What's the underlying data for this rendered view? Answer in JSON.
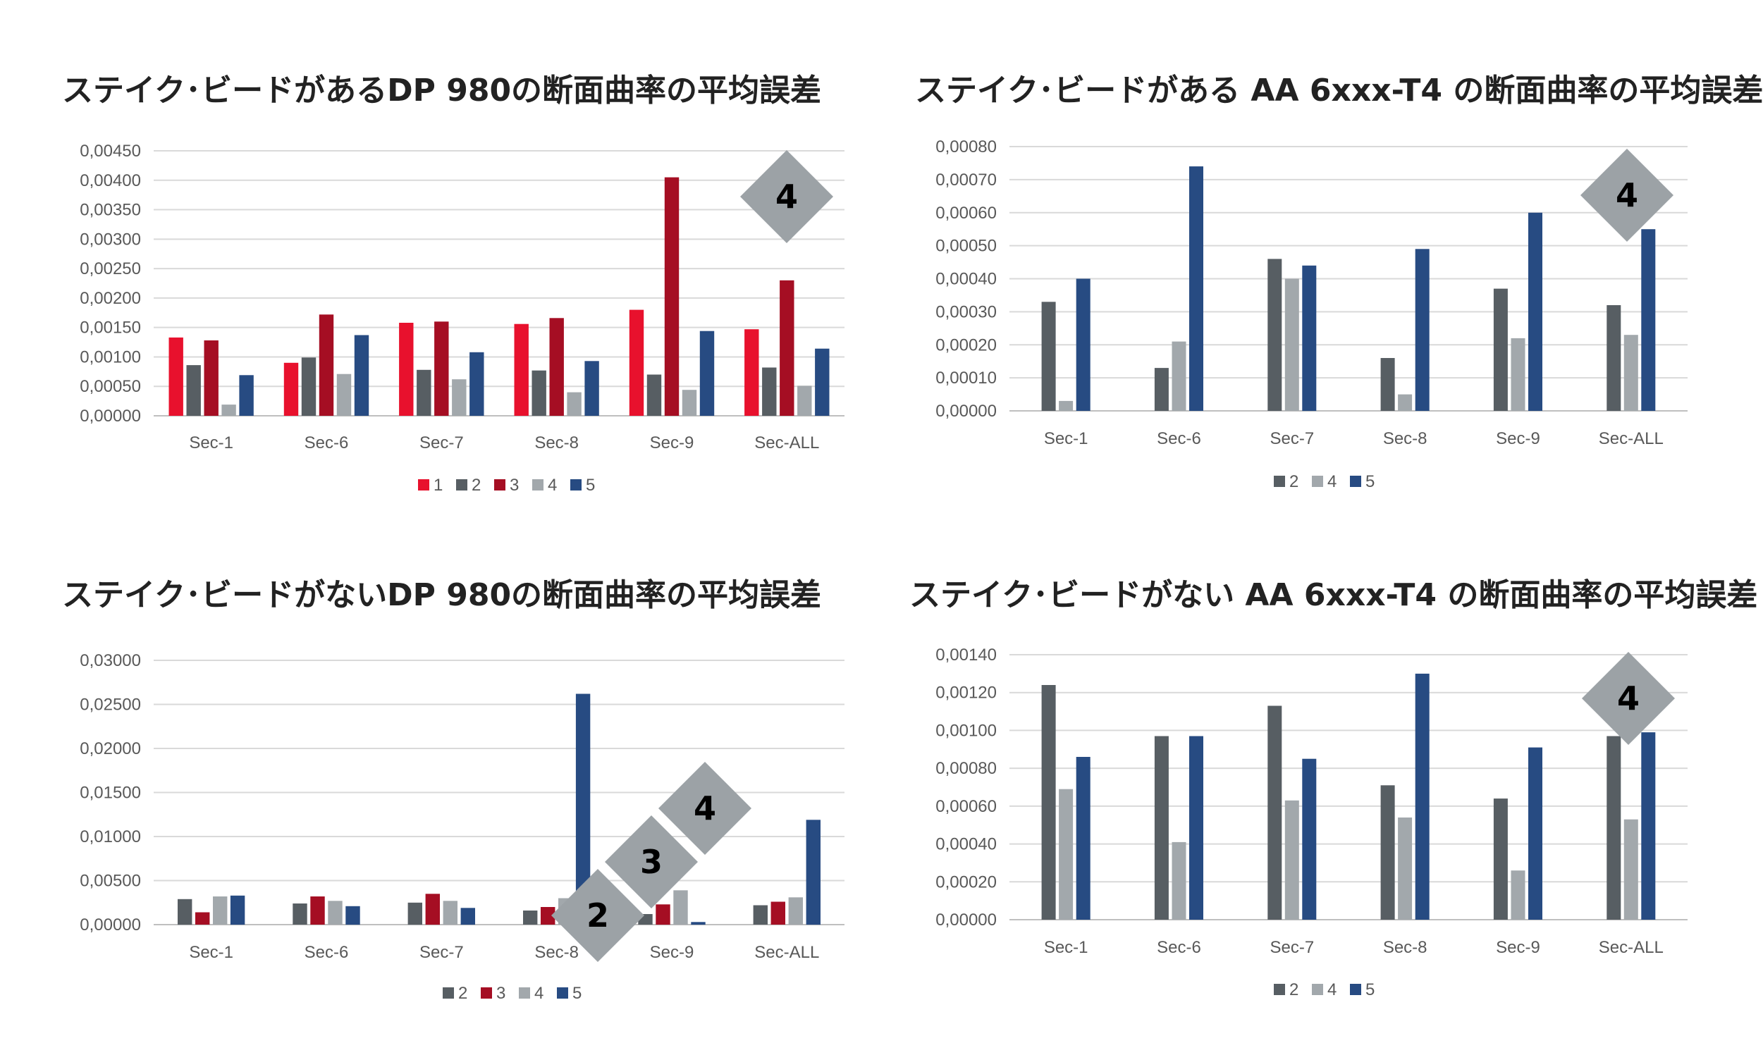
{
  "colors": {
    "1": "#E8112D",
    "2": "#575E63",
    "3": "#A50E23",
    "4": "#A2A8AC",
    "5": "#274B82",
    "badge": "#9CA2A6",
    "grid": "#D9D9D9",
    "axis": "#BFBFBF"
  },
  "chart_data": [
    {
      "type": "bar",
      "title": "ステイク･ビードがあるDP 980の断面曲率の平均誤差",
      "categories": [
        "Sec-1",
        "Sec-6",
        "Sec-7",
        "Sec-8",
        "Sec-9",
        "Sec-ALL"
      ],
      "ylim": [
        0,
        0.0045
      ],
      "yticks": [
        "0,00000",
        "0,00050",
        "0,00100",
        "0,00150",
        "0,00200",
        "0,00250",
        "0,00300",
        "0,00350",
        "0,00400",
        "0,00450"
      ],
      "grid": true,
      "legend_position": "bottom",
      "badges": [
        "4"
      ],
      "series": [
        {
          "name": "1",
          "values": [
            0.00133,
            0.0009,
            0.00158,
            0.00156,
            0.0018,
            0.00147
          ]
        },
        {
          "name": "2",
          "values": [
            0.00086,
            0.00099,
            0.00078,
            0.00077,
            0.0007,
            0.00082
          ]
        },
        {
          "name": "3",
          "values": [
            0.00128,
            0.00172,
            0.0016,
            0.00166,
            0.00405,
            0.0023
          ]
        },
        {
          "name": "4",
          "values": [
            0.00019,
            0.00071,
            0.00062,
            0.0004,
            0.00044,
            0.00051
          ]
        },
        {
          "name": "5",
          "values": [
            0.00069,
            0.00137,
            0.00108,
            0.00093,
            0.00144,
            0.00114
          ]
        }
      ]
    },
    {
      "type": "bar",
      "title": "ステイク･ビードがある AA 6xxx-T4 の断面曲率の平均誤差",
      "categories": [
        "Sec-1",
        "Sec-6",
        "Sec-7",
        "Sec-8",
        "Sec-9",
        "Sec-ALL"
      ],
      "ylim": [
        0,
        0.0008
      ],
      "yticks": [
        "0,00000",
        "0,00010",
        "0,00020",
        "0,00030",
        "0,00040",
        "0,00050",
        "0,00060",
        "0,00070",
        "0,00080"
      ],
      "grid": true,
      "legend_position": "bottom",
      "badges": [
        "4"
      ],
      "series": [
        {
          "name": "2",
          "values": [
            0.00033,
            0.00013,
            0.00046,
            0.00016,
            0.00037,
            0.00032
          ]
        },
        {
          "name": "4",
          "values": [
            3e-05,
            0.00021,
            0.0004,
            5e-05,
            0.00022,
            0.00023
          ]
        },
        {
          "name": "5",
          "values": [
            0.0004,
            0.00074,
            0.00044,
            0.00049,
            0.0006,
            0.00055
          ]
        }
      ]
    },
    {
      "type": "bar",
      "title": "ステイク･ビードがないDP 980の断面曲率の平均誤差",
      "categories": [
        "Sec-1",
        "Sec-6",
        "Sec-7",
        "Sec-8",
        "Sec-9",
        "Sec-ALL"
      ],
      "ylim": [
        0,
        0.03
      ],
      "yticks": [
        "0,00000",
        "0,00500",
        "0,01000",
        "0,01500",
        "0,02000",
        "0,02500",
        "0,03000"
      ],
      "grid": true,
      "legend_position": "bottom",
      "badges": [
        "2",
        "3",
        "4"
      ],
      "series": [
        {
          "name": "2",
          "values": [
            0.0029,
            0.0024,
            0.0025,
            0.0016,
            0.0012,
            0.0022
          ]
        },
        {
          "name": "3",
          "values": [
            0.0014,
            0.0032,
            0.0035,
            0.002,
            0.0023,
            0.0026
          ]
        },
        {
          "name": "4",
          "values": [
            0.0032,
            0.0027,
            0.0027,
            0.003,
            0.0039,
            0.0031
          ]
        },
        {
          "name": "5",
          "values": [
            0.0033,
            0.0021,
            0.0019,
            0.0262,
            0.0003,
            0.0119
          ]
        }
      ]
    },
    {
      "type": "bar",
      "title": "ステイク･ビードがない AA 6xxx-T4 の断面曲率の平均誤差",
      "categories": [
        "Sec-1",
        "Sec-6",
        "Sec-7",
        "Sec-8",
        "Sec-9",
        "Sec-ALL"
      ],
      "ylim": [
        0,
        0.0014
      ],
      "yticks": [
        "0,00000",
        "0,00020",
        "0,00040",
        "0,00060",
        "0,00080",
        "0,00100",
        "0,00120",
        "0,00140"
      ],
      "grid": true,
      "legend_position": "bottom",
      "badges": [
        "4"
      ],
      "series": [
        {
          "name": "2",
          "values": [
            0.00124,
            0.00097,
            0.00113,
            0.00071,
            0.00064,
            0.00097
          ]
        },
        {
          "name": "4",
          "values": [
            0.00069,
            0.00041,
            0.00063,
            0.00054,
            0.00026,
            0.00053
          ]
        },
        {
          "name": "5",
          "values": [
            0.00086,
            0.00097,
            0.00085,
            0.0013,
            0.00091,
            0.00099
          ]
        }
      ]
    }
  ]
}
